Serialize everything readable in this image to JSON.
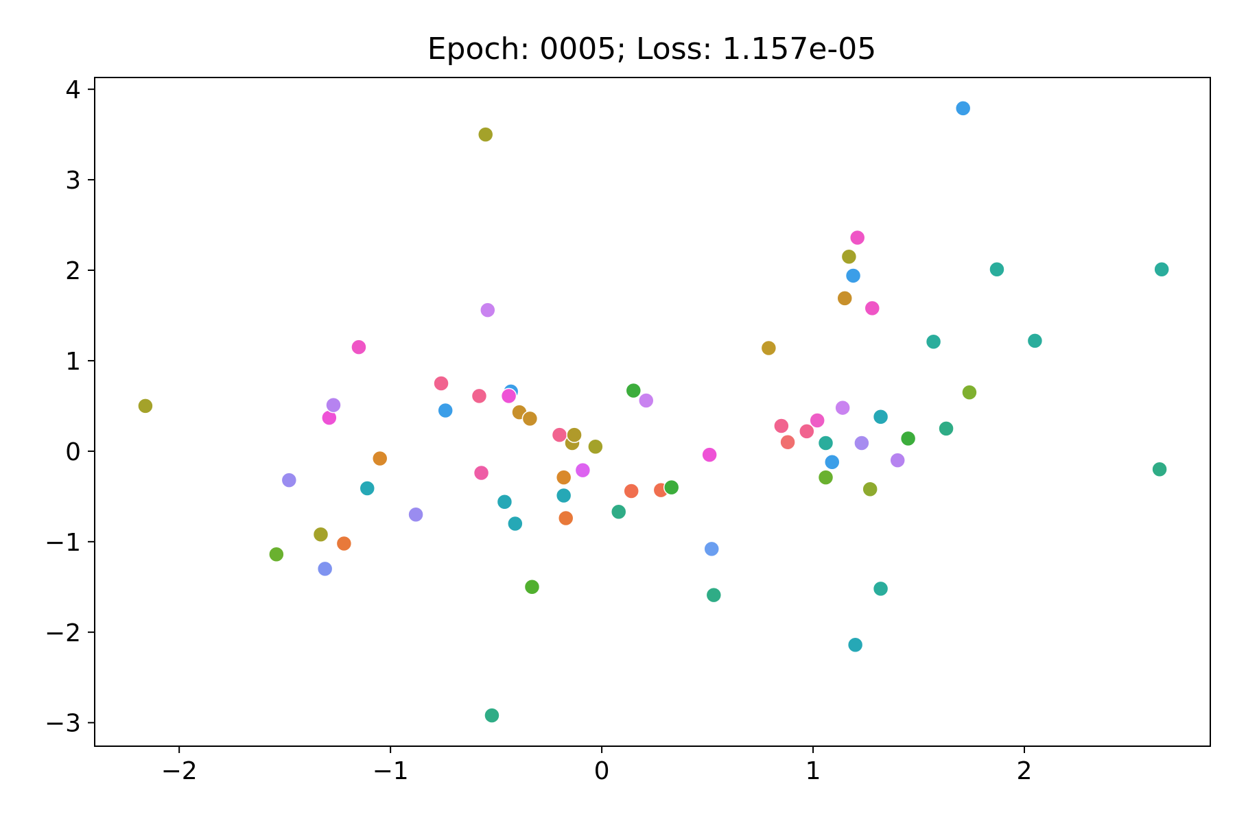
{
  "chart_data": {
    "type": "scatter",
    "title": "Epoch: 0005; Loss: 1.157e-05",
    "xlabel": "",
    "ylabel": "",
    "xlim": [
      -2.4,
      2.88
    ],
    "ylim": [
      -3.26,
      4.13
    ],
    "x_ticks": [
      {
        "value": -2,
        "label": "−2"
      },
      {
        "value": -1,
        "label": "−1"
      },
      {
        "value": 0,
        "label": "0"
      },
      {
        "value": 1,
        "label": "1"
      },
      {
        "value": 2,
        "label": "2"
      }
    ],
    "y_ticks": [
      {
        "value": -3,
        "label": "−3"
      },
      {
        "value": -2,
        "label": "−2"
      },
      {
        "value": -1,
        "label": "−1"
      },
      {
        "value": 0,
        "label": "0"
      },
      {
        "value": 1,
        "label": "1"
      },
      {
        "value": 2,
        "label": "2"
      },
      {
        "value": 3,
        "label": "3"
      },
      {
        "value": 4,
        "label": "4"
      }
    ],
    "grid": false,
    "legend": "none",
    "points": [
      {
        "x": -2.16,
        "y": 0.5,
        "color": "#a4a22a"
      },
      {
        "x": -1.54,
        "y": -1.14,
        "color": "#6ab12f"
      },
      {
        "x": -1.48,
        "y": -0.32,
        "color": "#9a8cf0"
      },
      {
        "x": -1.33,
        "y": -0.92,
        "color": "#a4a22a"
      },
      {
        "x": -1.31,
        "y": -1.3,
        "color": "#7f93f0"
      },
      {
        "x": -1.29,
        "y": 0.37,
        "color": "#ee52d6"
      },
      {
        "x": -1.27,
        "y": 0.51,
        "color": "#b683f0"
      },
      {
        "x": -1.22,
        "y": -1.02,
        "color": "#e8793a"
      },
      {
        "x": -1.15,
        "y": 1.15,
        "color": "#ef55c6"
      },
      {
        "x": -1.11,
        "y": -0.41,
        "color": "#26a8b6"
      },
      {
        "x": -1.05,
        "y": -0.08,
        "color": "#d9892b"
      },
      {
        "x": -0.88,
        "y": -0.7,
        "color": "#9a8cf0"
      },
      {
        "x": -0.76,
        "y": 0.75,
        "color": "#f1638f"
      },
      {
        "x": -0.74,
        "y": 0.45,
        "color": "#3b9ee8"
      },
      {
        "x": -0.58,
        "y": 0.61,
        "color": "#f1638f"
      },
      {
        "x": -0.57,
        "y": -0.24,
        "color": "#ee5da6"
      },
      {
        "x": -0.55,
        "y": 3.5,
        "color": "#a4a22a"
      },
      {
        "x": -0.54,
        "y": 1.56,
        "color": "#c983f0"
      },
      {
        "x": -0.52,
        "y": -2.92,
        "color": "#2fac86"
      },
      {
        "x": -0.46,
        "y": -0.56,
        "color": "#26a8b6"
      },
      {
        "x": -0.43,
        "y": 0.66,
        "color": "#3b9ee8"
      },
      {
        "x": -0.44,
        "y": 0.61,
        "color": "#ee52d6"
      },
      {
        "x": -0.41,
        "y": -0.8,
        "color": "#26a8b6"
      },
      {
        "x": -0.39,
        "y": 0.43,
        "color": "#c8902b"
      },
      {
        "x": -0.34,
        "y": 0.36,
        "color": "#c8902b"
      },
      {
        "x": -0.33,
        "y": -1.5,
        "color": "#51b02f"
      },
      {
        "x": -0.2,
        "y": 0.18,
        "color": "#f1638f"
      },
      {
        "x": -0.18,
        "y": -0.29,
        "color": "#d9892b"
      },
      {
        "x": -0.18,
        "y": -0.49,
        "color": "#26a8b6"
      },
      {
        "x": -0.17,
        "y": -0.74,
        "color": "#e8793a"
      },
      {
        "x": -0.14,
        "y": 0.09,
        "color": "#b09a2a"
      },
      {
        "x": -0.13,
        "y": 0.18,
        "color": "#b09a2a"
      },
      {
        "x": -0.09,
        "y": -0.21,
        "color": "#dd63f0"
      },
      {
        "x": -0.03,
        "y": 0.05,
        "color": "#a4a22a"
      },
      {
        "x": 0.08,
        "y": -0.67,
        "color": "#2fac86"
      },
      {
        "x": 0.14,
        "y": -0.44,
        "color": "#f06f4f"
      },
      {
        "x": 0.15,
        "y": 0.67,
        "color": "#3cad3c"
      },
      {
        "x": 0.21,
        "y": 0.56,
        "color": "#c983f0"
      },
      {
        "x": 0.28,
        "y": -0.43,
        "color": "#f06f4f"
      },
      {
        "x": 0.33,
        "y": -0.4,
        "color": "#3cad3c"
      },
      {
        "x": 0.51,
        "y": -0.04,
        "color": "#ee52d6"
      },
      {
        "x": 0.52,
        "y": -1.08,
        "color": "#6a9ef0"
      },
      {
        "x": 0.53,
        "y": -1.59,
        "color": "#2fac86"
      },
      {
        "x": 0.79,
        "y": 1.14,
        "color": "#c09a2a"
      },
      {
        "x": 0.85,
        "y": 0.28,
        "color": "#f1638f"
      },
      {
        "x": 0.88,
        "y": 0.1,
        "color": "#f06f6f"
      },
      {
        "x": 0.97,
        "y": 0.22,
        "color": "#f1638f"
      },
      {
        "x": 1.02,
        "y": 0.34,
        "color": "#ee5dc6"
      },
      {
        "x": 1.06,
        "y": 0.09,
        "color": "#2aad9c"
      },
      {
        "x": 1.06,
        "y": -0.29,
        "color": "#6ab12f"
      },
      {
        "x": 1.09,
        "y": -0.12,
        "color": "#3b9ee8"
      },
      {
        "x": 1.14,
        "y": 0.48,
        "color": "#c983f0"
      },
      {
        "x": 1.15,
        "y": 1.69,
        "color": "#c8902b"
      },
      {
        "x": 1.17,
        "y": 2.15,
        "color": "#a4a22a"
      },
      {
        "x": 1.19,
        "y": 1.94,
        "color": "#3b9ee8"
      },
      {
        "x": 1.2,
        "y": -2.14,
        "color": "#26a8b6"
      },
      {
        "x": 1.21,
        "y": 2.36,
        "color": "#ef55c6"
      },
      {
        "x": 1.23,
        "y": 0.09,
        "color": "#a78cf0"
      },
      {
        "x": 1.27,
        "y": -0.42,
        "color": "#8eaa2f"
      },
      {
        "x": 1.28,
        "y": 1.58,
        "color": "#ef55c6"
      },
      {
        "x": 1.32,
        "y": 0.38,
        "color": "#26a8b6"
      },
      {
        "x": 1.32,
        "y": -1.52,
        "color": "#2aad9c"
      },
      {
        "x": 1.4,
        "y": -0.1,
        "color": "#b683f0"
      },
      {
        "x": 1.45,
        "y": 0.14,
        "color": "#3cad3c"
      },
      {
        "x": 1.57,
        "y": 1.21,
        "color": "#2aad9c"
      },
      {
        "x": 1.63,
        "y": 0.25,
        "color": "#2fac86"
      },
      {
        "x": 1.71,
        "y": 3.79,
        "color": "#3b9ee8"
      },
      {
        "x": 1.74,
        "y": 0.65,
        "color": "#7fb02f"
      },
      {
        "x": 1.87,
        "y": 2.01,
        "color": "#2aad9c"
      },
      {
        "x": 2.05,
        "y": 1.22,
        "color": "#2aad9c"
      },
      {
        "x": 2.64,
        "y": -0.2,
        "color": "#2fac86"
      },
      {
        "x": 2.65,
        "y": 2.01,
        "color": "#2aad9c"
      }
    ]
  }
}
